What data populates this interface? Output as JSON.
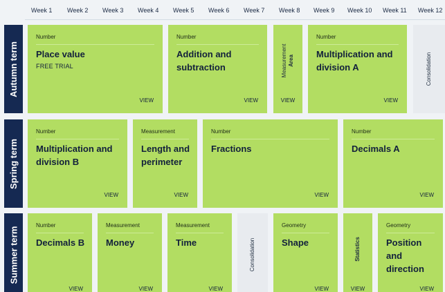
{
  "weeks": [
    "Week 1",
    "Week 2",
    "Week 3",
    "Week 4",
    "Week 5",
    "Week 6",
    "Week 7",
    "Week 8",
    "Week 9",
    "Week 10",
    "Week 11",
    "Week 12"
  ],
  "terms": {
    "autumn": "Autumn term",
    "spring": "Spring term",
    "summer": "Summer term"
  },
  "view_label": "VIEW",
  "autumn": {
    "place_value": {
      "category": "Number",
      "title": "Place value",
      "badge": "FREE TRIAL"
    },
    "addition": {
      "category": "Number",
      "title": "Addition and subtraction"
    },
    "area": {
      "category": "Measurement",
      "title": "Area"
    },
    "mult_a": {
      "category": "Number",
      "title": "Multiplication and division A"
    },
    "consolidation": "Consolidation"
  },
  "spring": {
    "mult_b": {
      "category": "Number",
      "title": "Multiplication and division B"
    },
    "length": {
      "category": "Measurement",
      "title": "Length and perimeter"
    },
    "fractions": {
      "category": "Number",
      "title": "Fractions"
    },
    "decimals_a": {
      "category": "Number",
      "title": "Decimals A"
    }
  },
  "summer": {
    "decimals_b": {
      "category": "Number",
      "title": "Decimals B"
    },
    "money": {
      "category": "Measurement",
      "title": "Money"
    },
    "time": {
      "category": "Measurement",
      "title": "Time"
    },
    "consolidation": "Consolidation",
    "shape": {
      "category": "Geometry",
      "title": "Shape"
    },
    "statistics": "Statistics",
    "position": {
      "category": "Geometry",
      "title": "Position and direction"
    }
  },
  "colors": {
    "card_green": "#b2dd62",
    "term_navy": "#152952",
    "consolidation_grey": "#e8ebef"
  }
}
